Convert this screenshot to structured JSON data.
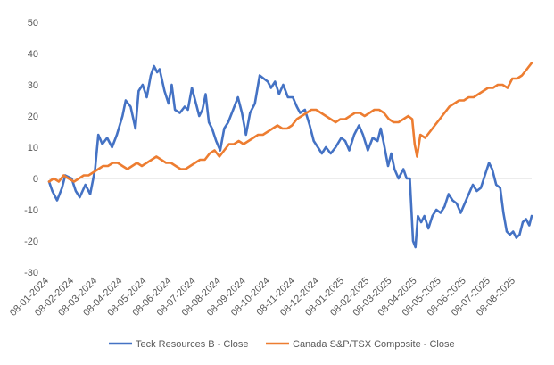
{
  "chart_data": {
    "type": "line",
    "title": "",
    "xlabel": "",
    "ylabel": "",
    "ylim": [
      -30,
      50
    ],
    "yticks": [
      -30,
      -20,
      -10,
      0,
      10,
      20,
      30,
      40,
      50
    ],
    "grid": false,
    "legend_position": "bottom",
    "x_tick_labels": [
      "08-01-2024",
      "08-02-2024",
      "08-03-2024",
      "08-04-2024",
      "08-05-2024",
      "08-06-2024",
      "08-07-2024",
      "08-08-2024",
      "08-09-2024",
      "08-10-2024",
      "08-11-2024",
      "08-12-2024",
      "08-01-2025",
      "08-02-2025",
      "08-03-2025",
      "08-04-2025",
      "08-05-2025",
      "08-06-2025",
      "08-07-2025",
      "08-08-2025"
    ],
    "x_axis_note": "Dates shown as DD-MM-YYYY; tick at the 8th of each month",
    "x_range": [
      "2024-01-08",
      "2025-08-28"
    ],
    "series": [
      {
        "name": "Teck Resources B - Close",
        "color": "#4472C4",
        "points": [
          [
            "2024-01-08",
            -1
          ],
          [
            "2024-01-12",
            -4
          ],
          [
            "2024-01-18",
            -7
          ],
          [
            "2024-01-24",
            -3
          ],
          [
            "2024-01-28",
            1
          ],
          [
            "2024-02-05",
            0
          ],
          [
            "2024-02-10",
            -4
          ],
          [
            "2024-02-15",
            -6
          ],
          [
            "2024-02-22",
            -2
          ],
          [
            "2024-02-28",
            -5
          ],
          [
            "2024-03-05",
            3
          ],
          [
            "2024-03-09",
            14
          ],
          [
            "2024-03-14",
            11
          ],
          [
            "2024-03-20",
            13
          ],
          [
            "2024-03-26",
            10
          ],
          [
            "2024-04-01",
            14
          ],
          [
            "2024-04-08",
            20
          ],
          [
            "2024-04-12",
            25
          ],
          [
            "2024-04-18",
            23
          ],
          [
            "2024-04-24",
            16
          ],
          [
            "2024-04-28",
            28
          ],
          [
            "2024-05-03",
            30
          ],
          [
            "2024-05-08",
            26
          ],
          [
            "2024-05-13",
            33
          ],
          [
            "2024-05-17",
            36
          ],
          [
            "2024-05-21",
            34
          ],
          [
            "2024-05-24",
            35
          ],
          [
            "2024-05-30",
            28
          ],
          [
            "2024-06-04",
            24
          ],
          [
            "2024-06-08",
            30
          ],
          [
            "2024-06-12",
            22
          ],
          [
            "2024-06-18",
            21
          ],
          [
            "2024-06-24",
            23
          ],
          [
            "2024-06-28",
            22
          ],
          [
            "2024-07-03",
            29
          ],
          [
            "2024-07-08",
            24
          ],
          [
            "2024-07-12",
            20
          ],
          [
            "2024-07-16",
            22
          ],
          [
            "2024-07-20",
            27
          ],
          [
            "2024-07-24",
            18
          ],
          [
            "2024-07-28",
            16
          ],
          [
            "2024-08-02",
            12
          ],
          [
            "2024-08-07",
            9
          ],
          [
            "2024-08-12",
            16
          ],
          [
            "2024-08-17",
            18
          ],
          [
            "2024-08-23",
            22
          ],
          [
            "2024-08-29",
            26
          ],
          [
            "2024-09-03",
            21
          ],
          [
            "2024-09-08",
            14
          ],
          [
            "2024-09-13",
            21
          ],
          [
            "2024-09-19",
            24
          ],
          [
            "2024-09-25",
            33
          ],
          [
            "2024-09-30",
            32
          ],
          [
            "2024-10-05",
            31
          ],
          [
            "2024-10-09",
            29
          ],
          [
            "2024-10-14",
            31
          ],
          [
            "2024-10-19",
            27
          ],
          [
            "2024-10-24",
            30
          ],
          [
            "2024-10-30",
            26
          ],
          [
            "2024-11-05",
            26
          ],
          [
            "2024-11-10",
            23
          ],
          [
            "2024-11-14",
            21
          ],
          [
            "2024-11-20",
            22
          ],
          [
            "2024-11-26",
            17
          ],
          [
            "2024-12-01",
            12
          ],
          [
            "2024-12-06",
            10
          ],
          [
            "2024-12-11",
            8
          ],
          [
            "2024-12-16",
            10
          ],
          [
            "2024-12-22",
            8
          ],
          [
            "2024-12-28",
            10
          ],
          [
            "2025-01-04",
            13
          ],
          [
            "2025-01-09",
            12
          ],
          [
            "2025-01-14",
            9
          ],
          [
            "2025-01-20",
            14
          ],
          [
            "2025-01-26",
            17
          ],
          [
            "2025-01-31",
            14
          ],
          [
            "2025-02-06",
            9
          ],
          [
            "2025-02-12",
            13
          ],
          [
            "2025-02-18",
            12
          ],
          [
            "2025-02-22",
            16
          ],
          [
            "2025-02-26",
            11
          ],
          [
            "2025-03-03",
            4
          ],
          [
            "2025-03-07",
            8
          ],
          [
            "2025-03-11",
            3
          ],
          [
            "2025-03-16",
            0
          ],
          [
            "2025-03-22",
            3
          ],
          [
            "2025-03-26",
            0
          ],
          [
            "2025-03-30",
            0
          ],
          [
            "2025-04-03",
            -20
          ],
          [
            "2025-04-06",
            -22
          ],
          [
            "2025-04-09",
            -12
          ],
          [
            "2025-04-13",
            -14
          ],
          [
            "2025-04-17",
            -12
          ],
          [
            "2025-04-22",
            -16
          ],
          [
            "2025-04-27",
            -12
          ],
          [
            "2025-05-02",
            -10
          ],
          [
            "2025-05-07",
            -11
          ],
          [
            "2025-05-12",
            -9
          ],
          [
            "2025-05-17",
            -5
          ],
          [
            "2025-05-22",
            -7
          ],
          [
            "2025-05-27",
            -8
          ],
          [
            "2025-06-01",
            -11
          ],
          [
            "2025-06-06",
            -8
          ],
          [
            "2025-06-11",
            -5
          ],
          [
            "2025-06-16",
            -2
          ],
          [
            "2025-06-21",
            -4
          ],
          [
            "2025-06-26",
            -3
          ],
          [
            "2025-07-01",
            1
          ],
          [
            "2025-07-06",
            5
          ],
          [
            "2025-07-10",
            3
          ],
          [
            "2025-07-15",
            -2
          ],
          [
            "2025-07-20",
            -3
          ],
          [
            "2025-07-24",
            -11
          ],
          [
            "2025-07-28",
            -17
          ],
          [
            "2025-08-01",
            -18
          ],
          [
            "2025-08-05",
            -17
          ],
          [
            "2025-08-09",
            -19
          ],
          [
            "2025-08-13",
            -18
          ],
          [
            "2025-08-17",
            -14
          ],
          [
            "2025-08-21",
            -13
          ],
          [
            "2025-08-25",
            -15
          ],
          [
            "2025-08-28",
            -12
          ]
        ]
      },
      {
        "name": "Canada S&P/TSX Composite - Close",
        "color": "#ED7D31",
        "points": [
          [
            "2024-01-08",
            -1
          ],
          [
            "2024-01-14",
            0
          ],
          [
            "2024-01-20",
            -1
          ],
          [
            "2024-01-26",
            1
          ],
          [
            "2024-02-01",
            0
          ],
          [
            "2024-02-08",
            -1
          ],
          [
            "2024-02-14",
            0
          ],
          [
            "2024-02-20",
            1
          ],
          [
            "2024-02-26",
            1
          ],
          [
            "2024-03-03",
            2
          ],
          [
            "2024-03-09",
            3
          ],
          [
            "2024-03-15",
            4
          ],
          [
            "2024-03-21",
            4
          ],
          [
            "2024-03-27",
            5
          ],
          [
            "2024-04-02",
            5
          ],
          [
            "2024-04-08",
            4
          ],
          [
            "2024-04-14",
            3
          ],
          [
            "2024-04-20",
            4
          ],
          [
            "2024-04-26",
            5
          ],
          [
            "2024-05-02",
            4
          ],
          [
            "2024-05-08",
            5
          ],
          [
            "2024-05-14",
            6
          ],
          [
            "2024-05-20",
            7
          ],
          [
            "2024-05-26",
            6
          ],
          [
            "2024-06-01",
            5
          ],
          [
            "2024-06-07",
            5
          ],
          [
            "2024-06-13",
            4
          ],
          [
            "2024-06-19",
            3
          ],
          [
            "2024-06-25",
            3
          ],
          [
            "2024-07-01",
            4
          ],
          [
            "2024-07-07",
            5
          ],
          [
            "2024-07-13",
            6
          ],
          [
            "2024-07-19",
            6
          ],
          [
            "2024-07-25",
            8
          ],
          [
            "2024-07-31",
            9
          ],
          [
            "2024-08-06",
            7
          ],
          [
            "2024-08-12",
            9
          ],
          [
            "2024-08-18",
            11
          ],
          [
            "2024-08-24",
            11
          ],
          [
            "2024-08-30",
            12
          ],
          [
            "2024-09-05",
            11
          ],
          [
            "2024-09-11",
            12
          ],
          [
            "2024-09-17",
            13
          ],
          [
            "2024-09-23",
            14
          ],
          [
            "2024-09-29",
            14
          ],
          [
            "2024-10-05",
            15
          ],
          [
            "2024-10-11",
            16
          ],
          [
            "2024-10-17",
            17
          ],
          [
            "2024-10-23",
            16
          ],
          [
            "2024-10-29",
            16
          ],
          [
            "2024-11-04",
            17
          ],
          [
            "2024-11-10",
            19
          ],
          [
            "2024-11-16",
            20
          ],
          [
            "2024-11-22",
            21
          ],
          [
            "2024-11-28",
            22
          ],
          [
            "2024-12-04",
            22
          ],
          [
            "2024-12-10",
            21
          ],
          [
            "2024-12-16",
            20
          ],
          [
            "2024-12-22",
            19
          ],
          [
            "2024-12-28",
            18
          ],
          [
            "2025-01-03",
            19
          ],
          [
            "2025-01-09",
            19
          ],
          [
            "2025-01-15",
            20
          ],
          [
            "2025-01-21",
            21
          ],
          [
            "2025-01-27",
            21
          ],
          [
            "2025-02-02",
            20
          ],
          [
            "2025-02-08",
            21
          ],
          [
            "2025-02-14",
            22
          ],
          [
            "2025-02-20",
            22
          ],
          [
            "2025-02-26",
            21
          ],
          [
            "2025-03-04",
            19
          ],
          [
            "2025-03-10",
            18
          ],
          [
            "2025-03-16",
            18
          ],
          [
            "2025-03-22",
            19
          ],
          [
            "2025-03-28",
            20
          ],
          [
            "2025-04-02",
            19
          ],
          [
            "2025-04-05",
            11
          ],
          [
            "2025-04-08",
            7
          ],
          [
            "2025-04-12",
            14
          ],
          [
            "2025-04-18",
            13
          ],
          [
            "2025-04-24",
            15
          ],
          [
            "2025-04-30",
            17
          ],
          [
            "2025-05-06",
            19
          ],
          [
            "2025-05-12",
            21
          ],
          [
            "2025-05-18",
            23
          ],
          [
            "2025-05-24",
            24
          ],
          [
            "2025-05-30",
            25
          ],
          [
            "2025-06-05",
            25
          ],
          [
            "2025-06-11",
            26
          ],
          [
            "2025-06-17",
            26
          ],
          [
            "2025-06-23",
            27
          ],
          [
            "2025-06-29",
            28
          ],
          [
            "2025-07-05",
            29
          ],
          [
            "2025-07-11",
            29
          ],
          [
            "2025-07-17",
            30
          ],
          [
            "2025-07-23",
            30
          ],
          [
            "2025-07-29",
            29
          ],
          [
            "2025-08-04",
            32
          ],
          [
            "2025-08-10",
            32
          ],
          [
            "2025-08-16",
            33
          ],
          [
            "2025-08-22",
            35
          ],
          [
            "2025-08-28",
            37
          ]
        ]
      }
    ]
  }
}
